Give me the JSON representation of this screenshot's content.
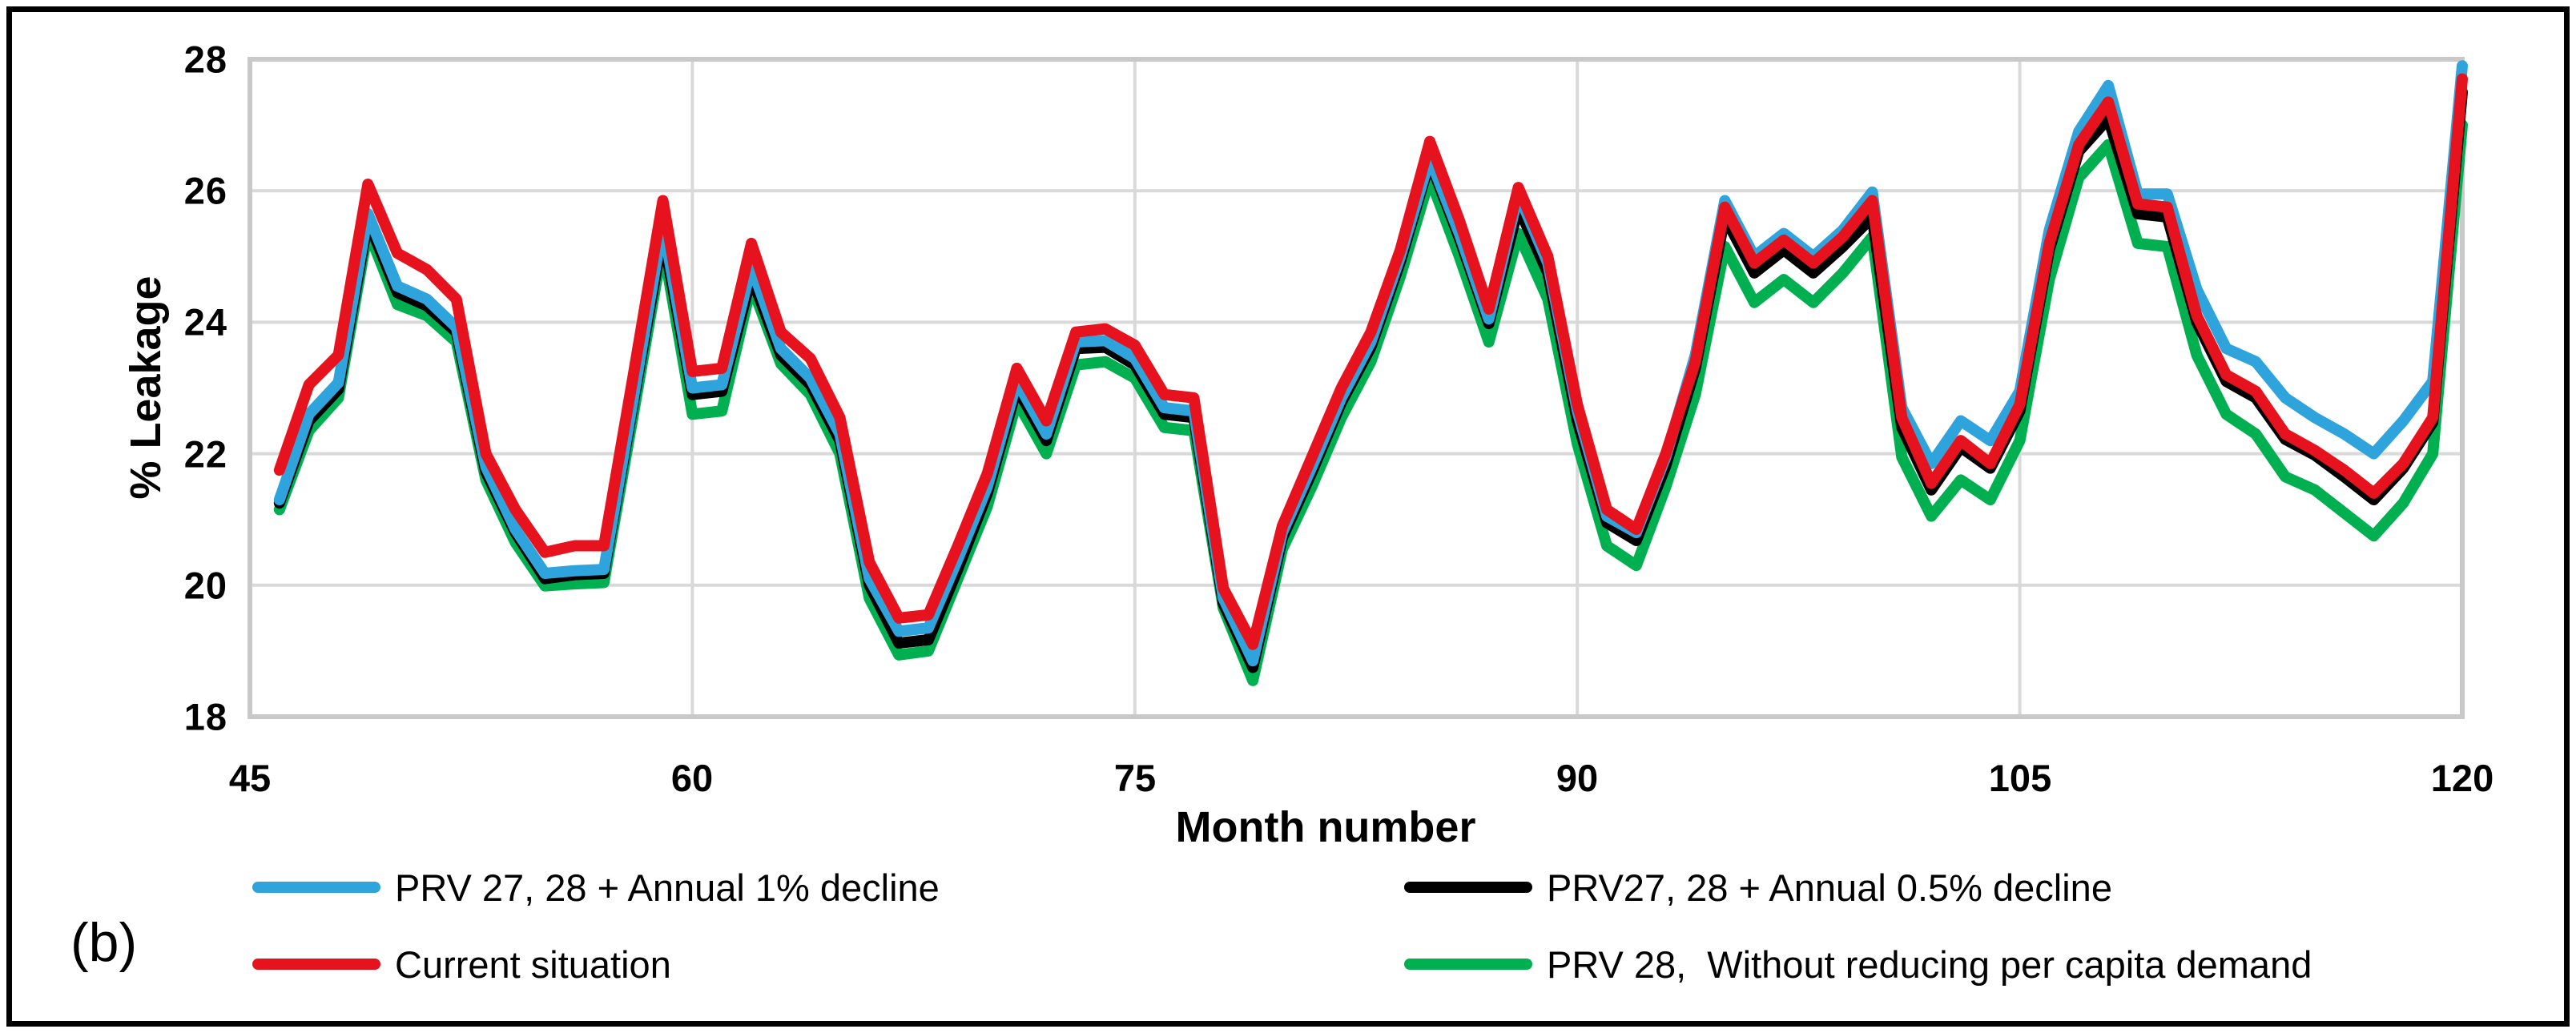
{
  "figure_label": "(b)",
  "chart_data": {
    "type": "line",
    "xlabel": "Month number",
    "ylabel": "% Leakage",
    "xlim": [
      45,
      120
    ],
    "ylim": [
      18,
      28
    ],
    "xticks": [
      45,
      60,
      75,
      90,
      105,
      120
    ],
    "yticks": [
      28,
      26,
      24,
      22,
      20,
      18
    ],
    "xtick_labels": [
      "45",
      "60",
      "75",
      "90",
      "105",
      "120"
    ],
    "ytick_labels": [
      "28",
      "26",
      "24",
      "22",
      "20",
      "18"
    ],
    "grid": true,
    "grid_color": "#D9D9D9",
    "legend_position": "bottom-two-columns",
    "x_months": {
      "start": 46,
      "end": 120,
      "step": 1
    },
    "draw_order": [
      3,
      1,
      0,
      2
    ],
    "series": [
      {
        "id": "prv2728-1pct-decline",
        "name": "PRV 27, 28 + Annual 1% decline",
        "color": "#2EA3DC",
        "values": [
          21.3,
          22.6,
          23.08,
          25.65,
          24.55,
          24.35,
          23.92,
          21.8,
          20.85,
          20.18,
          20.22,
          20.24,
          22.85,
          25.5,
          23.0,
          23.05,
          24.85,
          23.6,
          23.15,
          22.3,
          20.1,
          19.3,
          19.35,
          20.4,
          21.5,
          23.1,
          22.3,
          23.7,
          23.72,
          23.45,
          22.7,
          22.65,
          19.8,
          18.85,
          20.8,
          21.8,
          22.85,
          23.7,
          25.0,
          26.5,
          25.35,
          24.05,
          25.95,
          24.9,
          22.65,
          21.05,
          20.8,
          21.95,
          23.5,
          25.85,
          25.0,
          25.35,
          25.0,
          25.4,
          25.98,
          22.7,
          21.85,
          22.5,
          22.2,
          22.95,
          25.4,
          26.9,
          27.6,
          25.95,
          25.95,
          24.5,
          23.6,
          23.4,
          22.85,
          22.55,
          22.3,
          22.0,
          22.5,
          23.1,
          27.9
        ]
      },
      {
        "id": "prv2728-05pct-decline",
        "name": "PRV27, 28 + Annual 0.5% decline",
        "color": "#000000",
        "values": [
          21.25,
          22.5,
          22.98,
          25.55,
          24.45,
          24.25,
          23.85,
          21.72,
          20.8,
          20.1,
          20.16,
          20.18,
          22.78,
          25.35,
          22.9,
          22.95,
          24.7,
          23.5,
          23.05,
          22.2,
          20.0,
          19.12,
          19.17,
          20.25,
          21.4,
          23.0,
          22.2,
          23.6,
          23.62,
          23.35,
          22.6,
          22.55,
          19.72,
          18.75,
          20.72,
          21.72,
          22.78,
          23.62,
          24.92,
          26.45,
          25.28,
          23.98,
          25.75,
          24.75,
          22.5,
          20.95,
          20.68,
          21.82,
          23.3,
          25.6,
          24.75,
          25.1,
          24.75,
          25.15,
          25.6,
          22.4,
          21.45,
          22.1,
          21.78,
          22.65,
          25.1,
          26.6,
          27.1,
          25.65,
          25.6,
          24.0,
          23.1,
          22.85,
          22.22,
          21.98,
          21.65,
          21.3,
          21.78,
          22.48,
          27.5
        ]
      },
      {
        "id": "current-situation",
        "name": "Current situation",
        "color": "#E6131E",
        "values": [
          21.75,
          23.05,
          23.5,
          26.1,
          25.05,
          24.8,
          24.35,
          22.0,
          21.15,
          20.5,
          20.6,
          20.6,
          23.2,
          25.85,
          23.25,
          23.3,
          25.2,
          23.85,
          23.45,
          22.55,
          20.35,
          19.5,
          19.55,
          20.6,
          21.7,
          23.3,
          22.5,
          23.85,
          23.9,
          23.65,
          22.9,
          22.85,
          19.95,
          19.1,
          20.9,
          21.95,
          23.0,
          23.85,
          25.1,
          26.75,
          25.55,
          24.2,
          26.05,
          25.0,
          22.75,
          21.15,
          20.85,
          22.0,
          23.4,
          25.75,
          24.9,
          25.25,
          24.9,
          25.3,
          25.85,
          22.55,
          21.55,
          22.2,
          21.85,
          22.75,
          25.2,
          26.7,
          27.35,
          25.8,
          25.75,
          24.1,
          23.2,
          22.95,
          22.3,
          22.05,
          21.75,
          21.4,
          21.85,
          22.55,
          27.7
        ]
      },
      {
        "id": "prv28-no-demand-reduction",
        "name": "PRV 28,  Without reducing per capita demand",
        "color": "#00B050",
        "values": [
          21.15,
          22.35,
          22.85,
          25.4,
          24.27,
          24.1,
          23.7,
          21.6,
          20.65,
          19.99,
          20.02,
          20.04,
          22.6,
          25.18,
          22.6,
          22.65,
          24.57,
          23.37,
          22.9,
          22.0,
          19.8,
          18.94,
          19.0,
          20.1,
          21.2,
          22.8,
          22.0,
          23.35,
          23.4,
          23.15,
          22.4,
          22.35,
          19.65,
          18.55,
          20.55,
          21.5,
          22.55,
          23.4,
          24.7,
          26.2,
          25.0,
          23.7,
          25.35,
          24.35,
          22.15,
          20.6,
          20.3,
          21.5,
          22.9,
          25.15,
          24.3,
          24.65,
          24.3,
          24.75,
          25.3,
          21.95,
          21.05,
          21.6,
          21.3,
          22.2,
          24.65,
          26.2,
          26.7,
          25.2,
          25.15,
          23.5,
          22.6,
          22.3,
          21.65,
          21.45,
          21.1,
          20.75,
          21.25,
          22.0,
          27.0
        ]
      }
    ]
  }
}
